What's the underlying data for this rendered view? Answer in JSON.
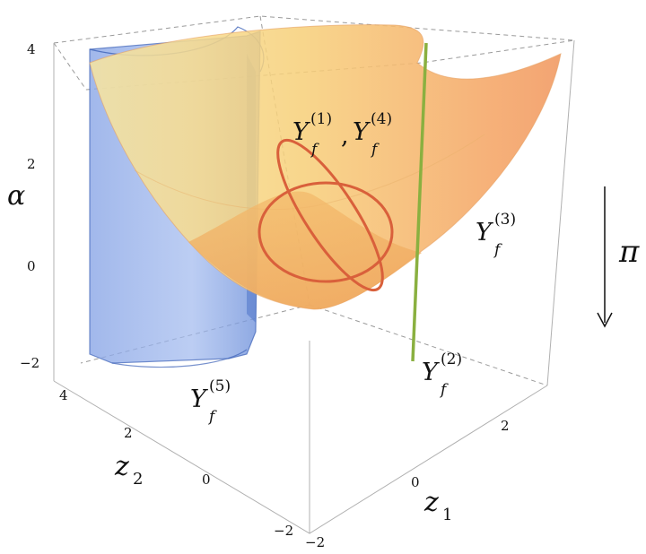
{
  "axes": {
    "alpha": {
      "name": "α",
      "ticks": [
        "4",
        "2",
        "0",
        "−2"
      ]
    },
    "z2": {
      "name": "z",
      "sub": "2",
      "ticks": [
        "4",
        "2",
        "0",
        "−2"
      ]
    },
    "z1": {
      "name": "z",
      "sub": "1",
      "ticks": [
        "−2",
        "0",
        "2"
      ]
    }
  },
  "labels": {
    "y14": {
      "base": "Y",
      "sub": "f",
      "sup1": "(1)",
      "comma": ",",
      "sup2": "(4)"
    },
    "y3": {
      "base": "Y",
      "sub": "f",
      "sup": "(3)"
    },
    "y2": {
      "base": "Y",
      "sub": "f",
      "sup": "(2)"
    },
    "y5": {
      "base": "Y",
      "sub": "f",
      "sup": "(5)"
    }
  },
  "projection": {
    "symbol": "π",
    "direction": "down"
  },
  "colors": {
    "paraboloid": "#f7c96b",
    "paraboloid_edge": "#e89a5a",
    "cylinder": "#7f9fe0",
    "cylinder_edge": "#3d63b8",
    "line": "#8ab040",
    "curves": "#d9603b"
  }
}
